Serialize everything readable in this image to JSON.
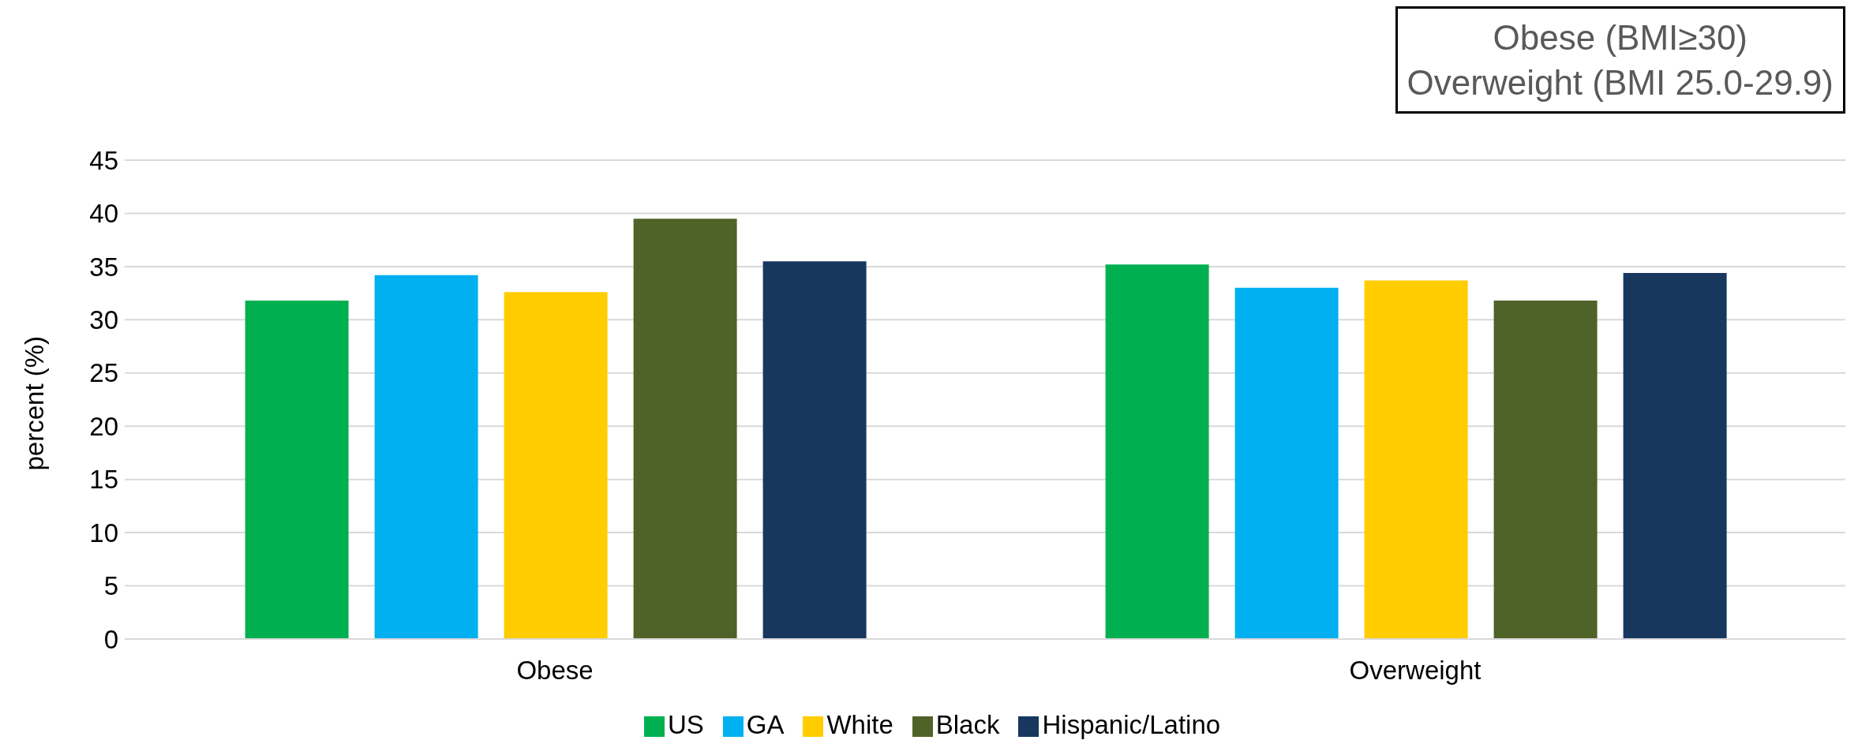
{
  "chart_data": {
    "type": "bar",
    "categories": [
      "Obese",
      "Overweight"
    ],
    "series": [
      {
        "name": "US",
        "color": "#00b050",
        "values": [
          31.8,
          35.2
        ]
      },
      {
        "name": "GA",
        "color": "#00b0f0",
        "values": [
          34.2,
          33.0
        ]
      },
      {
        "name": "White",
        "color": "#ffcc00",
        "values": [
          32.6,
          33.7
        ]
      },
      {
        "name": "Black",
        "color": "#4f6228",
        "values": [
          39.5,
          31.8
        ]
      },
      {
        "name": "Hispanic/Latino",
        "color": "#17375e",
        "values": [
          35.5,
          34.4
        ]
      }
    ],
    "ylabel": "percent (%)",
    "ylim": [
      0,
      45
    ],
    "yticks": [
      0,
      5,
      10,
      15,
      20,
      25,
      30,
      35,
      40,
      45
    ],
    "grid": "y",
    "legend": "bottom",
    "annotations": [
      "Obese (BMI≥30)\nOverweight (BMI 25.0-29.9)"
    ]
  }
}
